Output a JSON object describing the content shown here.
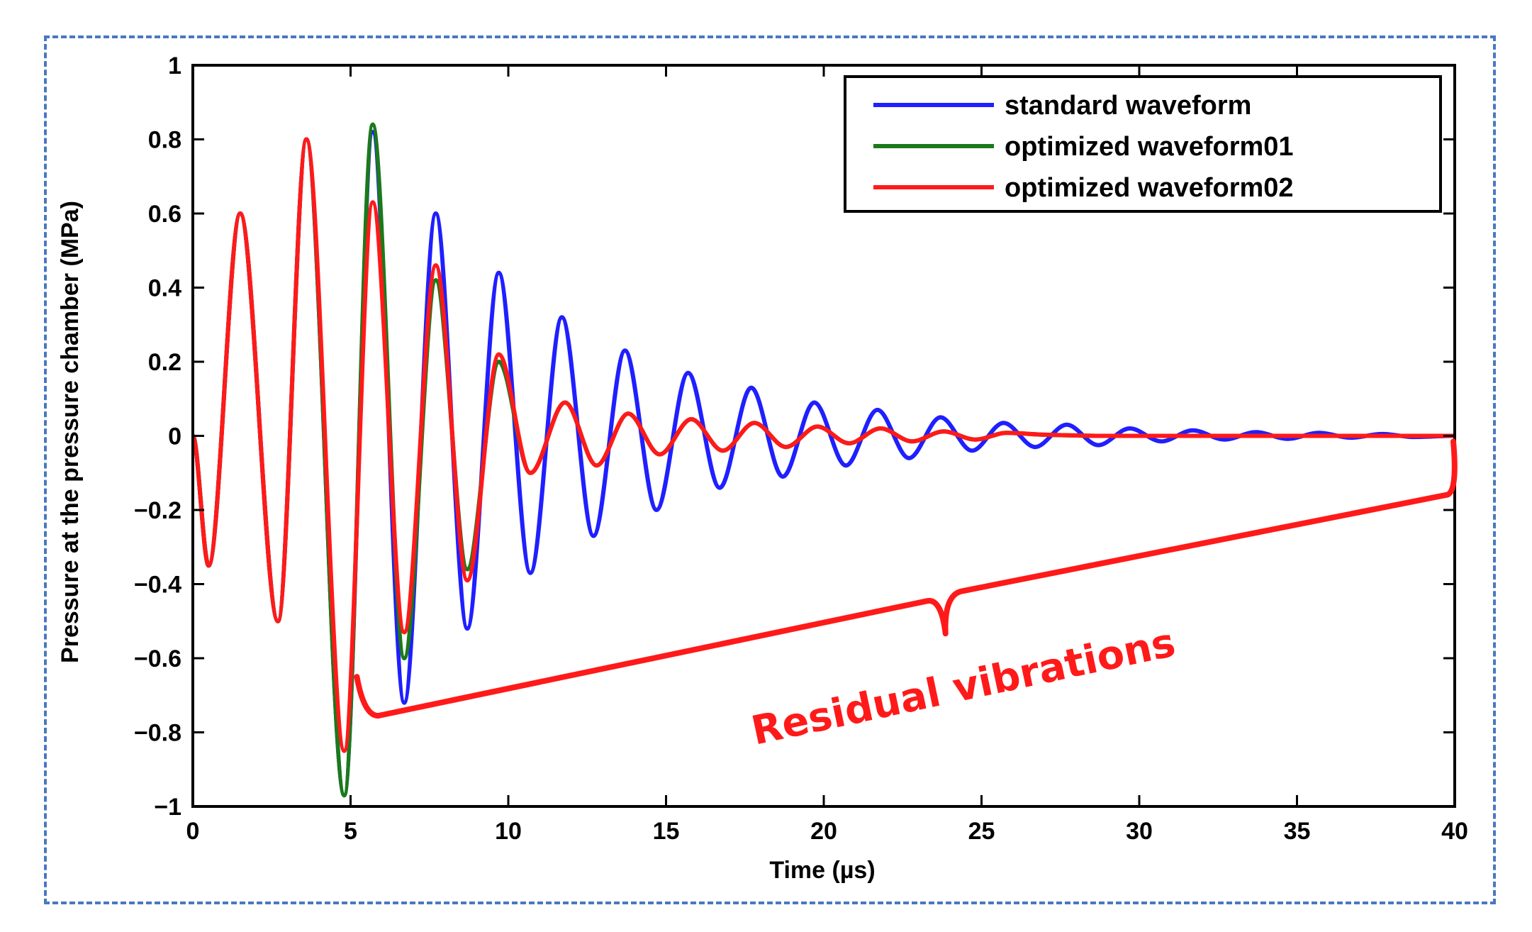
{
  "chart_data": {
    "type": "line",
    "title": "",
    "xlabel": "Time (µs)",
    "ylabel": "Pressure at the pressure chamber (MPa)",
    "xlim": [
      0,
      40
    ],
    "ylim": [
      -1,
      1
    ],
    "xticks": [
      0,
      5,
      10,
      15,
      20,
      25,
      30,
      35,
      40
    ],
    "yticks": [
      1,
      0.8,
      0.6,
      0.4,
      0.2,
      0,
      -0.2,
      -0.4,
      -0.6,
      -0.8,
      -1
    ],
    "ytick_labels": [
      "1",
      "0.8",
      "0.6",
      "0.4",
      "0.2",
      "0",
      "−0.2",
      "−0.4",
      "−0.6",
      "−0.8",
      "−1"
    ],
    "grid": false,
    "legend_position": "top-right",
    "series": [
      {
        "name": "standard waveform",
        "color": "#1f1fff",
        "x": [
          0,
          0.5,
          1.5,
          2.7,
          3.6,
          4.8,
          5.7,
          6.7,
          7.7,
          8.7,
          9.7,
          10.7,
          11.7,
          12.7,
          13.7,
          14.7,
          15.7,
          16.7,
          17.7,
          18.7,
          19.7,
          20.7,
          21.7,
          22.7,
          23.7,
          24.7,
          25.7,
          26.7,
          27.7,
          28.7,
          29.7,
          30.7,
          31.7,
          32.7,
          33.7,
          34.7,
          35.7,
          36.7,
          37.7,
          38.7,
          40
        ],
        "y": [
          0,
          -0.35,
          0.6,
          -0.5,
          0.8,
          -0.97,
          0.82,
          -0.72,
          0.6,
          -0.52,
          0.44,
          -0.37,
          0.32,
          -0.27,
          0.23,
          -0.2,
          0.17,
          -0.14,
          0.13,
          -0.11,
          0.09,
          -0.08,
          0.07,
          -0.06,
          0.05,
          -0.04,
          0.035,
          -0.03,
          0.03,
          -0.025,
          0.02,
          -0.015,
          0.015,
          -0.01,
          0.01,
          -0.008,
          0.008,
          -0.005,
          0.005,
          -0.003,
          0
        ]
      },
      {
        "name": "optimized waveform01",
        "color": "#1a7a1a",
        "x": [
          0,
          0.5,
          1.5,
          2.7,
          3.6,
          4.8,
          5.7,
          6.7,
          7.7,
          8.7,
          9.7,
          10.7,
          11.8,
          12.8,
          13.8,
          14.8,
          15.8,
          16.8,
          17.8,
          18.8,
          19.8,
          20.8,
          21.8,
          22.8,
          23.8,
          24.8,
          25.8,
          27,
          29,
          31,
          33,
          36,
          40
        ],
        "y": [
          0,
          -0.35,
          0.6,
          -0.5,
          0.8,
          -0.97,
          0.84,
          -0.6,
          0.42,
          -0.36,
          0.2,
          -0.1,
          0.09,
          -0.08,
          0.06,
          -0.05,
          0.045,
          -0.04,
          0.035,
          -0.03,
          0.025,
          -0.02,
          0.02,
          -0.015,
          0.012,
          -0.01,
          0.008,
          0.003,
          0,
          0,
          0,
          0,
          0
        ]
      },
      {
        "name": "optimized waveform02",
        "color": "#ff1a1a",
        "x": [
          0,
          0.5,
          1.5,
          2.7,
          3.6,
          4.8,
          5.7,
          6.7,
          7.7,
          8.7,
          9.7,
          10.7,
          11.8,
          12.8,
          13.8,
          14.8,
          15.8,
          16.8,
          17.8,
          18.8,
          19.8,
          20.8,
          21.8,
          22.8,
          23.8,
          24.8,
          25.8,
          27,
          29,
          31,
          33,
          36,
          40
        ],
        "y": [
          0,
          -0.35,
          0.6,
          -0.5,
          0.8,
          -0.85,
          0.63,
          -0.53,
          0.46,
          -0.39,
          0.22,
          -0.1,
          0.09,
          -0.08,
          0.06,
          -0.05,
          0.045,
          -0.04,
          0.035,
          -0.03,
          0.025,
          -0.02,
          0.02,
          -0.015,
          0.012,
          -0.01,
          0.008,
          0.003,
          0,
          0,
          0,
          0,
          0
        ]
      }
    ],
    "annotations": [
      {
        "text": "Residual vibrations",
        "color": "#ff1a1a",
        "bracket_x_range": [
          5.2,
          40
        ]
      }
    ]
  }
}
